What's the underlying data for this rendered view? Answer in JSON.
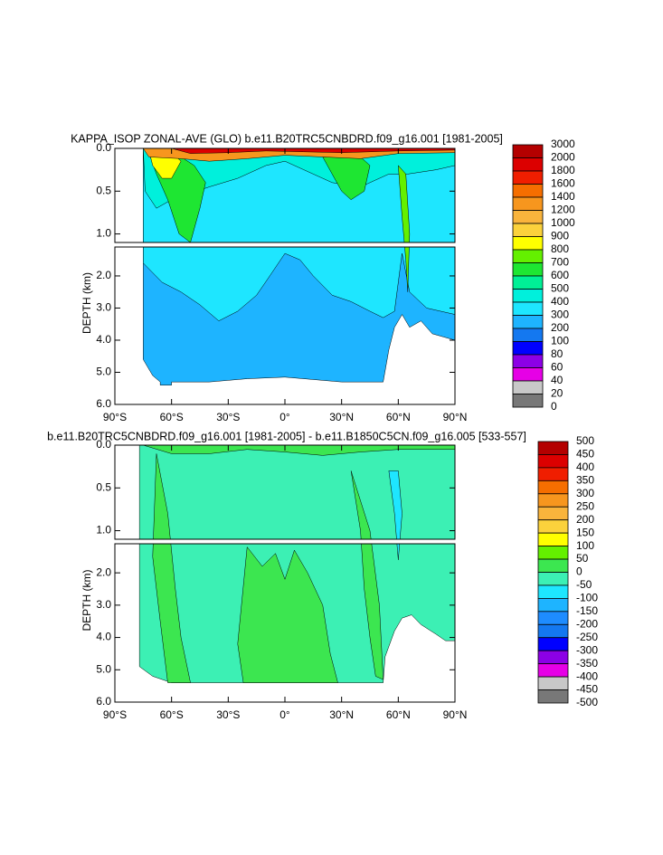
{
  "chart_data": [
    {
      "type": "contour",
      "title": "KAPPA_ISOP ZONAL-AVE (GLO) b.e11.B20TRC5CNBDRD.f09_g16.001 [1981-2005]",
      "ylabel": "DEPTH (km)",
      "xlim": [
        -90,
        90
      ],
      "xticks": [
        {
          "value": -90,
          "label": "90°S"
        },
        {
          "value": -60,
          "label": "60°S"
        },
        {
          "value": -30,
          "label": "30°S"
        },
        {
          "value": 0,
          "label": "0°"
        },
        {
          "value": 30,
          "label": "30°N"
        },
        {
          "value": 60,
          "label": "60°N"
        },
        {
          "value": 90,
          "label": "90°N"
        }
      ],
      "ylim": [
        0,
        6
      ],
      "ybreak": 1.1,
      "yticks": [
        {
          "value": 0,
          "label": "0.0"
        },
        {
          "value": 0.5,
          "label": "0.5"
        },
        {
          "value": 1,
          "label": "1.0"
        },
        {
          "value": 2,
          "label": "2.0"
        },
        {
          "value": 3,
          "label": "3.0"
        },
        {
          "value": 4,
          "label": "4.0"
        },
        {
          "value": 5,
          "label": "5.0"
        },
        {
          "value": 6,
          "label": "6.0"
        }
      ],
      "levels": [
        3000,
        2000,
        1800,
        1600,
        1400,
        1200,
        1000,
        900,
        800,
        700,
        600,
        500,
        400,
        300,
        200,
        100,
        80,
        60,
        40,
        20,
        0
      ],
      "colors": [
        "#b40000",
        "#dc0000",
        "#f01e00",
        "#f56e00",
        "#f7961e",
        "#f9b43c",
        "#fbd23c",
        "#ffff00",
        "#64f000",
        "#1ee632",
        "#00f096",
        "#00f0dc",
        "#1ee6ff",
        "#1eb4ff",
        "#1478f0",
        "#0000ff",
        "#8c00e6",
        "#e600e6",
        "#c8c8c8",
        "#787878"
      ]
    },
    {
      "type": "contour",
      "title": "b.e11.B20TRC5CNBDRD.f09_g16.001 [1981-2005] - b.e11.B1850C5CN.f09_g16.005 [533-557]",
      "ylabel": "DEPTH (km)",
      "xlim": [
        -90,
        90
      ],
      "xticks": [
        {
          "value": -90,
          "label": "90°S"
        },
        {
          "value": -60,
          "label": "60°S"
        },
        {
          "value": -30,
          "label": "30°S"
        },
        {
          "value": 0,
          "label": "0°"
        },
        {
          "value": 30,
          "label": "30°N"
        },
        {
          "value": 60,
          "label": "60°N"
        },
        {
          "value": 90,
          "label": "90°N"
        }
      ],
      "ylim": [
        0,
        6
      ],
      "ybreak": 1.1,
      "yticks": [
        {
          "value": 0,
          "label": "0.0"
        },
        {
          "value": 0.5,
          "label": "0.5"
        },
        {
          "value": 1,
          "label": "1.0"
        },
        {
          "value": 2,
          "label": "2.0"
        },
        {
          "value": 3,
          "label": "3.0"
        },
        {
          "value": 4,
          "label": "4.0"
        },
        {
          "value": 5,
          "label": "5.0"
        },
        {
          "value": 6,
          "label": "6.0"
        }
      ],
      "levels": [
        500,
        450,
        400,
        350,
        300,
        250,
        200,
        150,
        100,
        50,
        0,
        -50,
        -100,
        -150,
        -200,
        -250,
        -300,
        -350,
        -400,
        -450,
        -500
      ],
      "colors": [
        "#b40000",
        "#dc0000",
        "#f01e00",
        "#f56e00",
        "#f7961e",
        "#f9b43c",
        "#fbd23c",
        "#ffff00",
        "#64f000",
        "#3ce650",
        "#3cf0b4",
        "#1ee6ff",
        "#1eb4ff",
        "#1e8cff",
        "#1478f0",
        "#0000ff",
        "#8c00e6",
        "#e600e6",
        "#c8c8c8",
        "#787878"
      ]
    }
  ]
}
